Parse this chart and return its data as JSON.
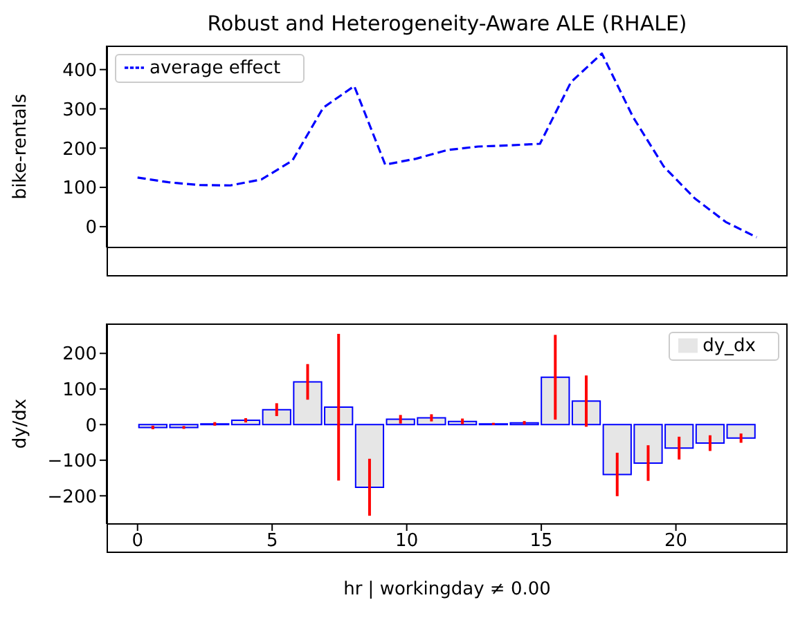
{
  "chart_data": [
    {
      "type": "line",
      "title": "Robust and Heterogeneity-Aware ALE (RHALE)",
      "ylabel": "bike-rentals",
      "x": [
        0,
        1.15,
        2.3,
        3.45,
        4.6,
        5.75,
        6.9,
        8.05,
        9.2,
        10.35,
        11.5,
        12.65,
        13.8,
        14.95,
        16.1,
        17.25,
        18.4,
        19.55,
        20.7,
        21.85,
        23
      ],
      "series": [
        {
          "name": "average effect",
          "color": "#0000ff",
          "values": [
            125,
            113,
            106,
            105,
            120,
            168,
            303,
            358,
            158,
            173,
            195,
            204,
            207,
            211,
            368,
            441,
            280,
            153,
            72,
            12,
            -27
          ]
        }
      ],
      "line_style": "dashed",
      "legend": "top left",
      "xlim": [
        -1.15,
        24.15
      ],
      "xticks": [
        0,
        5,
        10,
        15,
        20
      ],
      "ylim": [
        -53,
        461
      ],
      "yticks": [
        0,
        100,
        200,
        300,
        400
      ],
      "tick_labels": "y"
    },
    {
      "type": "histogram",
      "xlabel": "hr | workingday ≠ 0.00",
      "ylabel": "dy/dx",
      "bins": [
        0,
        1.15,
        2.3,
        3.45,
        4.6,
        5.75,
        6.9,
        8.05,
        9.2,
        10.35,
        11.5,
        12.65,
        13.8,
        14.95,
        16.1,
        17.25,
        18.4,
        19.55,
        20.7,
        21.85,
        23
      ],
      "series": [
        {
          "name": "dy_dx",
          "color": "#e6e6e6",
          "values": [
            -8,
            -8,
            2,
            12,
            42,
            120,
            49,
            -176,
            15,
            19,
            9,
            2,
            5,
            133,
            66,
            -140,
            -108,
            -66,
            -52,
            -38
          ],
          "errors": [
            5,
            4,
            5,
            6,
            18,
            50,
            206,
            80,
            12,
            10,
            8,
            3,
            5,
            119,
            72,
            61,
            50,
            32,
            22,
            13
          ]
        }
      ],
      "legend": "top right",
      "xlim": [
        -1.15,
        24.15
      ],
      "xticks": [
        0,
        5,
        10,
        15,
        20
      ],
      "ylim": [
        -279,
        284
      ],
      "yticks": [
        -200,
        -100,
        0,
        100,
        200
      ]
    }
  ]
}
